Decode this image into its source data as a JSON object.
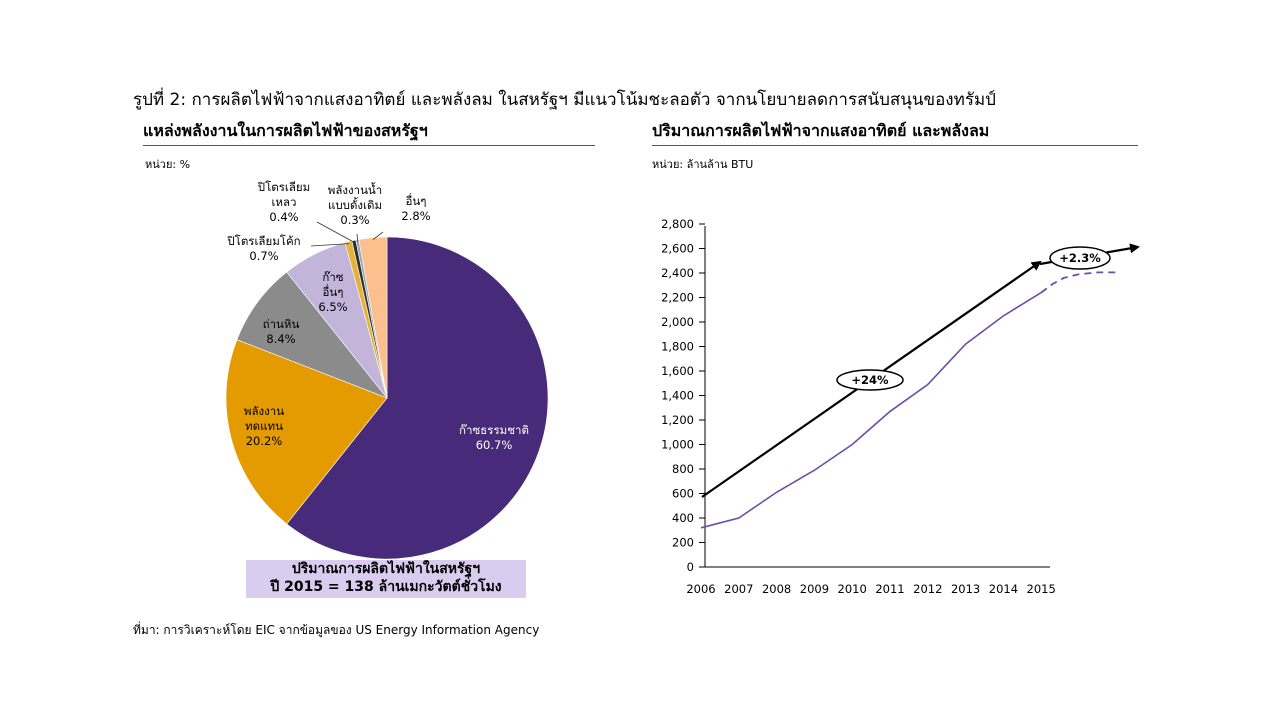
{
  "figure_title": "รูปที่ 2: การผลิตไฟฟ้าจากแสงอาทิตย์ และพลังลม ในสหรัฐฯ มีแนวโน้มชะลอตัว จากนโยบายลดการสนับสนุนของทรัมป์",
  "source": "ที่มา: การวิเคราะห์โดย EIC จากข้อมูลของ US Energy Information Agency",
  "note_line1": "ปริมาณการผลิตไฟฟ้าในสหรัฐฯ",
  "note_line2": "ปี 2015 = 138 ล้านเมกะวัตต์ชั่วโมง",
  "chart_data": [
    {
      "type": "pie",
      "title": "แหล่งพลังงานในการผลิตไฟฟ้าของสหรัฐฯ",
      "unit": "หน่วย: %",
      "slices": [
        {
          "label": "ก๊าซธรรมชาติ",
          "value": 60.7,
          "value_label": "60.7%",
          "color": "#472a7a"
        },
        {
          "label": "พลังงาน ทดแทน",
          "value": 20.2,
          "value_label": "20.2%",
          "color": "#e39b00"
        },
        {
          "label": "ถ่านหิน",
          "value": 8.4,
          "value_label": "8.4%",
          "color": "#8b8b8b"
        },
        {
          "label": "ก๊าซ อื่นๆ",
          "value": 6.5,
          "value_label": "6.5%",
          "color": "#c2b5d9"
        },
        {
          "label": "ปิโตรเลียมโค้ก",
          "value": 0.7,
          "value_label": "0.7%",
          "color": "#e3b23a"
        },
        {
          "label": "ปิโตรเลียม เหลว",
          "value": 0.4,
          "value_label": "0.4%",
          "color": "#2f2f2f"
        },
        {
          "label": "พลังงานน้ำ แบบดั้งเดิม",
          "value": 0.3,
          "value_label": "0.3%",
          "color": "#9aa7b3"
        },
        {
          "label": "อื่นๆ",
          "value": 2.8,
          "value_label": "2.8%",
          "color": "#fbc08e"
        }
      ]
    },
    {
      "type": "line",
      "title": "ปริมาณการผลิตไฟฟ้าจากแสงอาทิตย์ และพลังลม",
      "unit": "หน่วย: ล้านล้าน BTU",
      "ylim": [
        0,
        2800
      ],
      "yticks": [
        "0",
        "200",
        "400",
        "600",
        "800",
        "1,000",
        "1,200",
        "1,400",
        "1,600",
        "1,800",
        "2,000",
        "2,200",
        "2,400",
        "2,600",
        "2,800"
      ],
      "ytick_values": [
        0,
        200,
        400,
        600,
        800,
        1000,
        1200,
        1400,
        1600,
        1800,
        2000,
        2200,
        2400,
        2600,
        2800
      ],
      "x": [
        "2006",
        "2007",
        "2008",
        "2009",
        "2010",
        "2011",
        "2012",
        "2013",
        "2014",
        "2015"
      ],
      "series_actual": [
        320,
        400,
        610,
        790,
        1000,
        1270,
        1490,
        1820,
        2050,
        2240
      ],
      "series_forecast_x": [
        2015,
        2015.3,
        2015.6,
        2016,
        2016.5,
        2017
      ],
      "series_forecast_y": [
        2240,
        2310,
        2360,
        2390,
        2405,
        2405
      ],
      "line_color": "#6a4fa8",
      "trend_labels": [
        "+24%",
        "+2.3%"
      ]
    }
  ]
}
